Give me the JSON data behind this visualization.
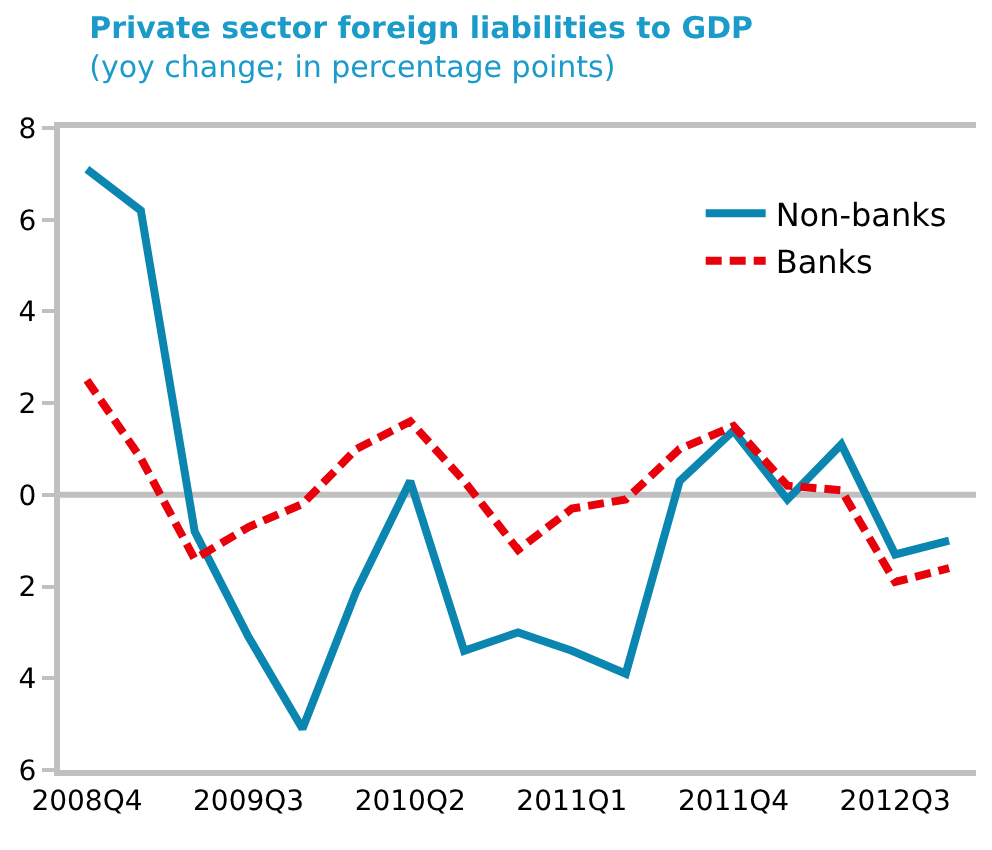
{
  "chart_data": {
    "type": "line",
    "title": "Private sector foreign liabilities to GDP",
    "subtitle": "(yoy change; in percentage points)",
    "categories": [
      "2008Q4",
      null,
      null,
      "2009Q3",
      null,
      null,
      "2010Q2",
      null,
      null,
      "2011Q1",
      null,
      null,
      "2011Q4",
      null,
      null,
      "2012Q3",
      null
    ],
    "series": [
      {
        "name": "Non-banks",
        "color": "#0a86b0",
        "line_style": "solid",
        "values": [
          7.1,
          6.2,
          -0.8,
          -3.1,
          -5.1,
          -2.1,
          0.3,
          -3.4,
          -3.0,
          -3.4,
          -3.9,
          0.3,
          1.4,
          -0.1,
          1.1,
          -1.3,
          -1.0
        ]
      },
      {
        "name": "Banks",
        "color": "#e8000b",
        "line_style": "dashed",
        "values": [
          2.5,
          0.8,
          -1.4,
          -0.7,
          -0.2,
          1.0,
          1.6,
          0.3,
          -1.2,
          -0.3,
          -0.1,
          1.0,
          1.5,
          0.2,
          0.1,
          -1.9,
          -1.6
        ]
      }
    ],
    "ylim": [
      -6,
      8
    ],
    "yticks": [
      {
        "value": -6,
        "label": "6"
      },
      {
        "value": -4,
        "label": "4"
      },
      {
        "value": -2,
        "label": "2"
      },
      0,
      2,
      4,
      6,
      8
    ],
    "ref_lines": [
      {
        "axis": "y",
        "value": 0,
        "color": "#c0c0c0"
      }
    ],
    "grid": false,
    "legend": "top right",
    "marker": "none"
  }
}
